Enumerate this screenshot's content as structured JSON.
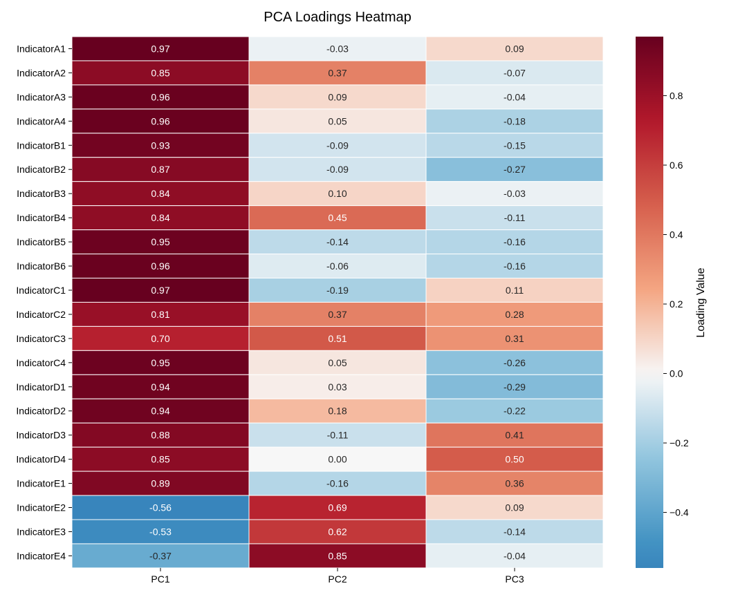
{
  "chart_data": {
    "type": "heatmap",
    "title": "PCA Loadings Heatmap",
    "xlabel": "",
    "ylabel": "",
    "columns": [
      "PC1",
      "PC2",
      "PC3"
    ],
    "rows": [
      "IndicatorA1",
      "IndicatorA2",
      "IndicatorA3",
      "IndicatorA4",
      "IndicatorB1",
      "IndicatorB2",
      "IndicatorB3",
      "IndicatorB4",
      "IndicatorB5",
      "IndicatorB6",
      "IndicatorC1",
      "IndicatorC2",
      "IndicatorC3",
      "IndicatorC4",
      "IndicatorD1",
      "IndicatorD2",
      "IndicatorD3",
      "IndicatorD4",
      "IndicatorE1",
      "IndicatorE2",
      "IndicatorE3",
      "IndicatorE4"
    ],
    "values": [
      [
        0.97,
        -0.03,
        0.09
      ],
      [
        0.85,
        0.37,
        -0.07
      ],
      [
        0.96,
        0.09,
        -0.04
      ],
      [
        0.96,
        0.05,
        -0.18
      ],
      [
        0.93,
        -0.09,
        -0.15
      ],
      [
        0.87,
        -0.09,
        -0.27
      ],
      [
        0.84,
        0.1,
        -0.03
      ],
      [
        0.84,
        0.45,
        -0.11
      ],
      [
        0.95,
        -0.14,
        -0.16
      ],
      [
        0.96,
        -0.06,
        -0.16
      ],
      [
        0.97,
        -0.19,
        0.11
      ],
      [
        0.81,
        0.37,
        0.28
      ],
      [
        0.7,
        0.51,
        0.31
      ],
      [
        0.95,
        0.05,
        -0.26
      ],
      [
        0.94,
        0.03,
        -0.29
      ],
      [
        0.94,
        0.18,
        -0.22
      ],
      [
        0.88,
        -0.11,
        0.41
      ],
      [
        0.85,
        0.0,
        0.5
      ],
      [
        0.89,
        -0.16,
        0.36
      ],
      [
        -0.56,
        0.69,
        0.09
      ],
      [
        -0.53,
        0.62,
        -0.14
      ],
      [
        -0.37,
        0.85,
        -0.04
      ]
    ],
    "value_format": "0.00",
    "colormap": "RdBu_r",
    "vmin": -0.56,
    "vmax": 0.97,
    "colorbar": {
      "label": "Loading Value",
      "ticks": [
        -0.4,
        -0.2,
        0.0,
        0.2,
        0.4,
        0.6,
        0.8
      ],
      "tick_labels": [
        "−0.4",
        "−0.2",
        "0.0",
        "0.2",
        "0.4",
        "0.6",
        "0.8"
      ]
    }
  }
}
